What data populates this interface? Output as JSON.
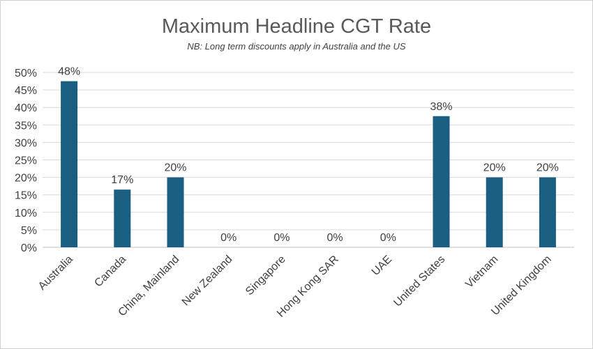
{
  "chart_data": {
    "type": "bar",
    "title": "Maximum Headline CGT Rate",
    "subtitle": "NB: Long term discounts apply in Australia and the US",
    "categories": [
      "Australia",
      "Canada",
      "China, Mainland",
      "New Zealand",
      "Singapore",
      "Hong Kong SAR",
      "UAE",
      "United States",
      "Vietnam",
      "United Kingdom"
    ],
    "values": [
      47.5,
      16.5,
      20,
      0,
      0,
      0,
      0,
      37.5,
      20,
      20
    ],
    "data_labels": [
      "48%",
      "17%",
      "20%",
      "0%",
      "0%",
      "0%",
      "0%",
      "38%",
      "20%",
      "20%"
    ],
    "ylim": [
      0,
      50
    ],
    "yticks": [
      0,
      5,
      10,
      15,
      20,
      25,
      30,
      35,
      40,
      45,
      50
    ],
    "ytick_labels": [
      "0%",
      "5%",
      "10%",
      "15%",
      "20%",
      "25%",
      "30%",
      "35%",
      "40%",
      "45%",
      "50%"
    ],
    "grid": true,
    "bar_color": "#1a5e82"
  }
}
